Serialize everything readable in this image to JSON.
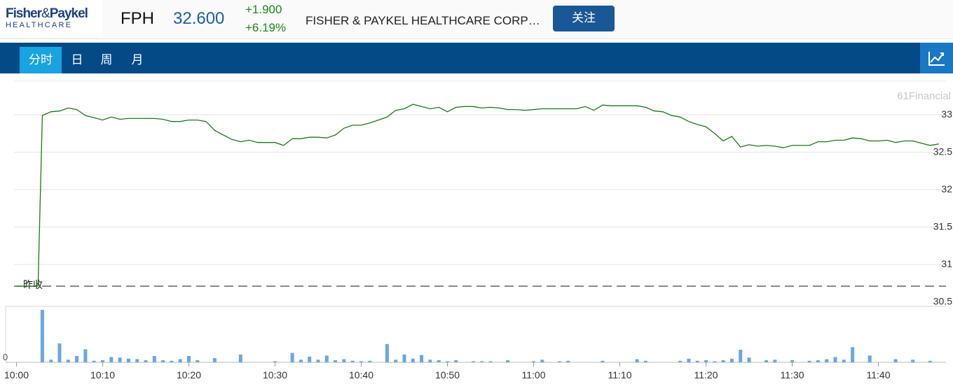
{
  "header": {
    "logo_top_1": "Fisher",
    "logo_amp": "&",
    "logo_top_2": "Paykel",
    "logo_bottom": "HEALTHCARE",
    "symbol": "FPH",
    "price": "32.600",
    "change": "+1.900",
    "change_pct": "+6.19%",
    "company_name": "FISHER & PAYKEL HEALTHCARE CORP…",
    "follow_label": "关注"
  },
  "tabs": [
    {
      "label": "分时",
      "active": true
    },
    {
      "label": "日",
      "active": false
    },
    {
      "label": "周",
      "active": false
    },
    {
      "label": "月",
      "active": false
    }
  ],
  "icons": {
    "chart_toggle": "line-chart-icon"
  },
  "colors": {
    "price_line": "#1a7a1a",
    "volume_bar": "#6aa7e4",
    "nav": "#034a86",
    "active_tab": "#19a3e0"
  },
  "chart_data": {
    "type": "line",
    "watermark": "61Financial",
    "prev_close_label": "昨收",
    "prev_close": 30.7,
    "y_ticks": [
      "33",
      "32.5",
      "32",
      "31.5",
      "31",
      "30.5"
    ],
    "y_tick_values": [
      33,
      32.5,
      32,
      31.5,
      31,
      30.5
    ],
    "ylim": [
      30.5,
      33.5
    ],
    "xlim": [
      0,
      108
    ],
    "x_ticks": [
      "10:00",
      "10:10",
      "10:20",
      "10:30",
      "10:40",
      "10:50",
      "11:00",
      "11:10",
      "11:20",
      "11:30",
      "11:40"
    ],
    "x_tick_minutes": [
      0,
      10,
      20,
      30,
      40,
      50,
      60,
      70,
      80,
      90,
      100
    ],
    "volume_axis_label": "0",
    "price_series": {
      "minutes": [
        0,
        1,
        2,
        2.5,
        3,
        4,
        5,
        6,
        7,
        8,
        9,
        10,
        11,
        12,
        13,
        14,
        15,
        16,
        17,
        18,
        19,
        20,
        21,
        22,
        23,
        24,
        25,
        26,
        27,
        28,
        29,
        30,
        31,
        32,
        33,
        34,
        35,
        36,
        37,
        38,
        39,
        40,
        41,
        42,
        43,
        44,
        45,
        46,
        47,
        48,
        49,
        50,
        51,
        52,
        53,
        54,
        55,
        56,
        57,
        58,
        59,
        60,
        61,
        62,
        63,
        64,
        65,
        66,
        67,
        68,
        69,
        70,
        71,
        72,
        73,
        74,
        75,
        76,
        77,
        78,
        79,
        80,
        81,
        82,
        83,
        84,
        85,
        86,
        87,
        88,
        89,
        90,
        91,
        92,
        93,
        94,
        95,
        96,
        97,
        98,
        99,
        100,
        101,
        102,
        103,
        104,
        105,
        106,
        107
      ],
      "values": [
        30.7,
        30.7,
        30.7,
        30.7,
        32.98,
        33.03,
        33.04,
        33.08,
        33.06,
        32.98,
        32.95,
        32.92,
        32.96,
        32.93,
        32.94,
        32.94,
        32.94,
        32.94,
        32.93,
        32.9,
        32.9,
        32.92,
        32.92,
        32.9,
        32.78,
        32.72,
        32.66,
        32.63,
        32.65,
        32.62,
        32.62,
        32.62,
        32.58,
        32.67,
        32.67,
        32.69,
        32.69,
        32.68,
        32.72,
        32.81,
        32.85,
        32.85,
        32.88,
        32.92,
        32.96,
        33.05,
        33.07,
        33.13,
        33.1,
        33.07,
        33.09,
        33.03,
        33.09,
        33.1,
        33.1,
        33.08,
        33.09,
        33.08,
        33.06,
        33.06,
        33.05,
        33.06,
        33.07,
        33.07,
        33.07,
        33.07,
        33.07,
        33.1,
        33.05,
        33.12,
        33.11,
        33.11,
        33.11,
        33.11,
        33.09,
        33.04,
        33.03,
        32.98,
        32.96,
        32.9,
        32.86,
        32.83,
        32.74,
        32.64,
        32.7,
        32.56,
        32.59,
        32.57,
        32.58,
        32.57,
        32.55,
        32.58,
        32.58,
        32.58,
        32.63,
        32.63,
        32.65,
        32.65,
        32.68,
        32.67,
        32.64,
        32.64,
        32.65,
        32.62,
        32.64,
        32.64,
        32.61,
        32.58,
        32.6
      ]
    },
    "volume_series": {
      "minutes": [
        3,
        4,
        5,
        6,
        7,
        8,
        9,
        10,
        11,
        12,
        13,
        14,
        15,
        16,
        17,
        18,
        19,
        20,
        21,
        23,
        26,
        30,
        32,
        33,
        34,
        35,
        36,
        37,
        38,
        39,
        40,
        41,
        43,
        44,
        45,
        46,
        47,
        48,
        49,
        50,
        51,
        53,
        54,
        55,
        57,
        60,
        61,
        63,
        64,
        68,
        72,
        73,
        77,
        78,
        79,
        80,
        81,
        82,
        83,
        84,
        85,
        87,
        88,
        90,
        92,
        93,
        94,
        95,
        96,
        97,
        99,
        102,
        104,
        106
      ],
      "values": [
        100,
        5,
        36,
        5,
        12,
        25,
        3,
        4,
        10,
        9,
        7,
        6,
        4,
        12,
        4,
        3,
        6,
        12,
        4,
        8,
        15,
        2,
        18,
        5,
        11,
        5,
        13,
        4,
        6,
        3,
        2,
        3,
        35,
        5,
        15,
        7,
        14,
        5,
        4,
        2,
        4,
        2,
        2,
        2,
        4,
        2,
        5,
        2,
        3,
        3,
        6,
        3,
        3,
        7,
        3,
        4,
        2,
        4,
        7,
        24,
        9,
        4,
        5,
        4,
        3,
        4,
        6,
        10,
        5,
        29,
        13,
        6,
        5,
        3
      ]
    }
  }
}
